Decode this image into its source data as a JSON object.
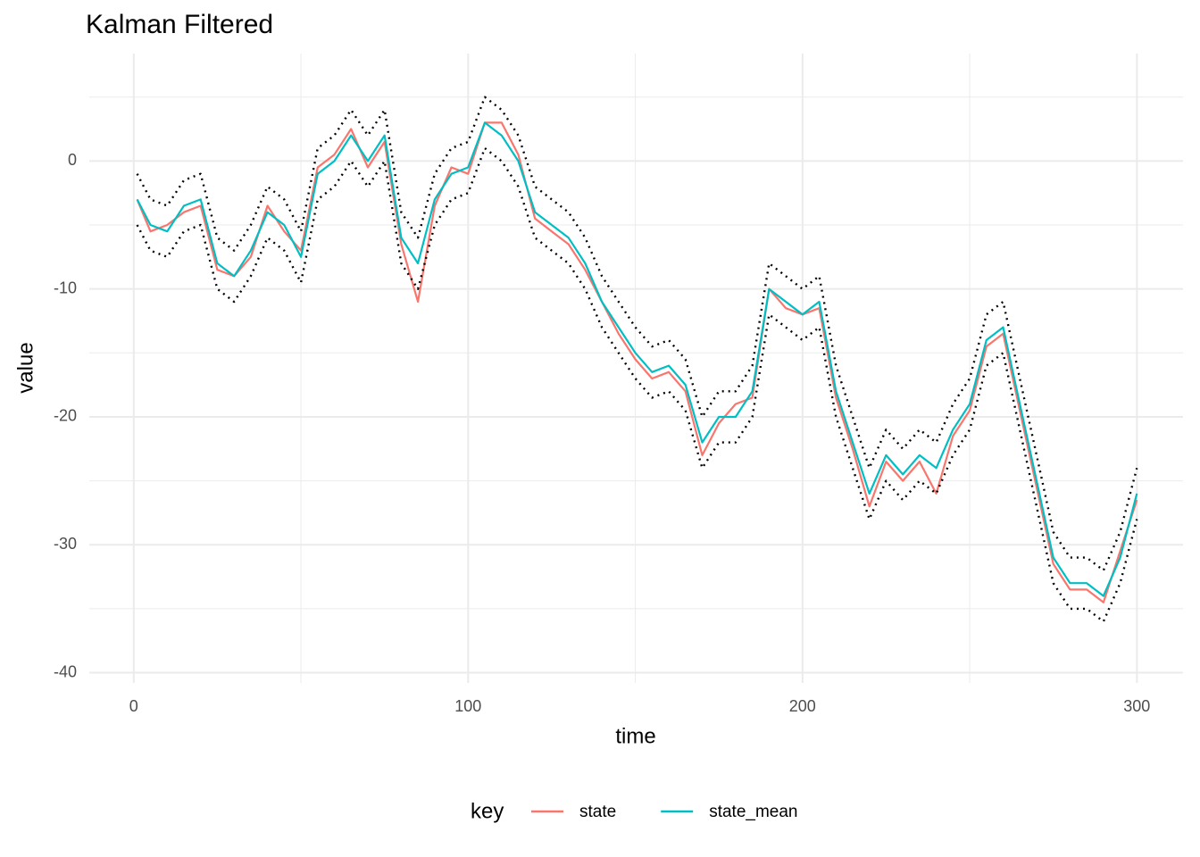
{
  "chart_data": {
    "type": "line",
    "title": "Kalman Filtered",
    "xlabel": "time",
    "ylabel": "value",
    "legend_title": "key",
    "legend": "bottom",
    "grid": true,
    "xlim": [
      -13.3,
      313.8
    ],
    "ylim": [
      -40.8,
      8.4
    ],
    "xticks": [
      0,
      100,
      200,
      300
    ],
    "yticks": [
      0,
      -10,
      -20,
      -30,
      -40
    ],
    "x": [
      1,
      5,
      10,
      15,
      20,
      25,
      30,
      35,
      40,
      45,
      50,
      55,
      60,
      65,
      70,
      75,
      80,
      85,
      90,
      95,
      100,
      105,
      110,
      115,
      120,
      125,
      130,
      135,
      140,
      145,
      150,
      155,
      160,
      165,
      170,
      175,
      180,
      185,
      190,
      195,
      200,
      205,
      210,
      215,
      220,
      225,
      230,
      235,
      240,
      245,
      250,
      255,
      260,
      265,
      270,
      275,
      280,
      285,
      290,
      295,
      300
    ],
    "series": [
      {
        "name": "state",
        "color": "#F8766D",
        "values": [
          -3,
          -5.5,
          -5,
          -4,
          -3.5,
          -8.5,
          -9,
          -7.5,
          -3.5,
          -5.5,
          -7,
          -0.5,
          0.5,
          2.5,
          -0.5,
          1.5,
          -6.5,
          -11,
          -3.5,
          -0.5,
          -1,
          3,
          3,
          0.5,
          -4.5,
          -5.5,
          -6.5,
          -8.5,
          -11,
          -13.5,
          -15.5,
          -17,
          -16.5,
          -18,
          -23,
          -20.5,
          -19,
          -18.5,
          -10,
          -11.5,
          -12,
          -11.5,
          -18.5,
          -22.5,
          -27,
          -23.5,
          -25,
          -23.5,
          -26,
          -21.5,
          -19.5,
          -14.5,
          -13.5,
          -19.5,
          -25.5,
          -31.5,
          -33.5,
          -33.5,
          -34.5,
          -30.5,
          -26.5
        ]
      },
      {
        "name": "state_mean",
        "color": "#00BFC4",
        "values": [
          -3,
          -5,
          -5.5,
          -3.5,
          -3,
          -8,
          -9,
          -7,
          -4,
          -5,
          -7.5,
          -1,
          0,
          2,
          0,
          2,
          -6,
          -8,
          -3,
          -1,
          -0.5,
          3,
          2,
          0,
          -4,
          -5,
          -6,
          -8,
          -11,
          -13,
          -15,
          -16.5,
          -16,
          -17.5,
          -22,
          -20,
          -20,
          -18,
          -10,
          -11,
          -12,
          -11,
          -18,
          -22,
          -26,
          -23,
          -24.5,
          -23,
          -24,
          -21,
          -19,
          -14,
          -13,
          -19,
          -25,
          -31,
          -33,
          -33,
          -34,
          -31,
          -26
        ]
      },
      {
        "color": "#000000",
        "dash": "dotted",
        "values": [
          -1,
          -3,
          -3.5,
          -1.5,
          -1,
          -6,
          -7,
          -5,
          -2,
          -3,
          -5.5,
          1,
          2,
          4,
          2,
          4,
          -4,
          -6,
          -1,
          1,
          1.5,
          5,
          4,
          2,
          -2,
          -3,
          -4,
          -6,
          -9,
          -11,
          -13,
          -14.5,
          -14,
          -15.5,
          -20,
          -18,
          -18,
          -16,
          -8,
          -9,
          -10,
          -9,
          -16,
          -20,
          -24,
          -21,
          -22.5,
          -21,
          -22,
          -19,
          -17,
          -12,
          -11,
          -17,
          -23,
          -29,
          -31,
          -31,
          -32,
          -29,
          -24
        ]
      },
      {
        "color": "#000000",
        "dash": "dotted",
        "values": [
          -5,
          -7,
          -7.5,
          -5.5,
          -5,
          -10,
          -11,
          -9,
          -6,
          -7,
          -9.5,
          -3,
          -2,
          0,
          -2,
          0,
          -8,
          -10,
          -5,
          -3,
          -2.5,
          1,
          0,
          -2,
          -6,
          -7,
          -8,
          -10,
          -13,
          -15,
          -17,
          -18.5,
          -18,
          -19.5,
          -24,
          -22,
          -22,
          -20,
          -12,
          -13,
          -14,
          -13,
          -20,
          -24,
          -28,
          -25,
          -26.5,
          -25,
          -26,
          -23,
          -21,
          -16,
          -15,
          -21,
          -27,
          -33,
          -35,
          -35,
          -36,
          -33,
          -28
        ]
      }
    ]
  }
}
